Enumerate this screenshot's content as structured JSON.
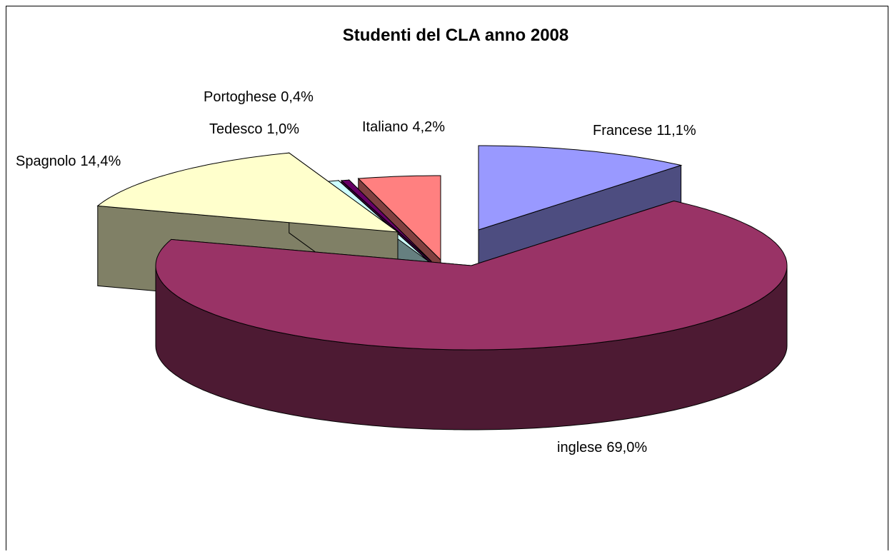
{
  "chart_data": {
    "type": "pie3d",
    "title": "Studenti del CLA anno 2008",
    "categories": [
      "Francese",
      "inglese",
      "Spagnolo",
      "Tedesco",
      "Portoghese",
      "Italiano"
    ],
    "values": [
      11.1,
      69.0,
      14.4,
      1.0,
      0.4,
      4.2
    ],
    "value_labels": [
      "11,1%",
      "69,0%",
      "14,4%",
      "1,0%",
      "0,4%",
      "4,2%"
    ],
    "colors": [
      "#9999ff",
      "#993366",
      "#ffffcc",
      "#ccffff",
      "#660066",
      "#ff8080"
    ]
  }
}
